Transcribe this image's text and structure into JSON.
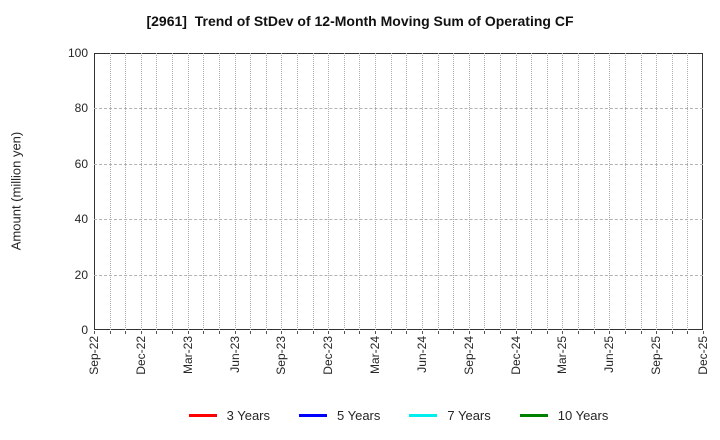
{
  "title": "[2961]  Trend of StDev of 12-Month Moving Sum of Operating CF",
  "chart_data": {
    "type": "line",
    "title": "[2961]  Trend of StDev of 12-Month Moving Sum of Operating CF",
    "xlabel": "",
    "ylabel": "Amount (million yen)",
    "ylim": [
      0,
      100
    ],
    "yticks": [
      0,
      20,
      40,
      60,
      80,
      100
    ],
    "x_tick_labels": [
      "Sep-22",
      "Dec-22",
      "Mar-23",
      "Jun-23",
      "Sep-23",
      "Dec-23",
      "Mar-24",
      "Jun-24",
      "Sep-24",
      "Dec-24",
      "Mar-25",
      "Jun-25",
      "Sep-25",
      "Dec-25"
    ],
    "minor_x_ticks_between_labels": 3,
    "grid": "on",
    "grid_style": {
      "vertical": "dotted-monthly",
      "horizontal": "dashed-at-major-yticks",
      "color": "#b0b0b0"
    },
    "legend_position": "bottom",
    "series": [
      {
        "name": "3 Years",
        "color": "#ff0000",
        "values": []
      },
      {
        "name": "5 Years",
        "color": "#0000ff",
        "values": []
      },
      {
        "name": "7 Years",
        "color": "#00eeee",
        "values": []
      },
      {
        "name": "10 Years",
        "color": "#008000",
        "values": []
      }
    ],
    "note": "plot area is empty - no series data is drawn"
  }
}
